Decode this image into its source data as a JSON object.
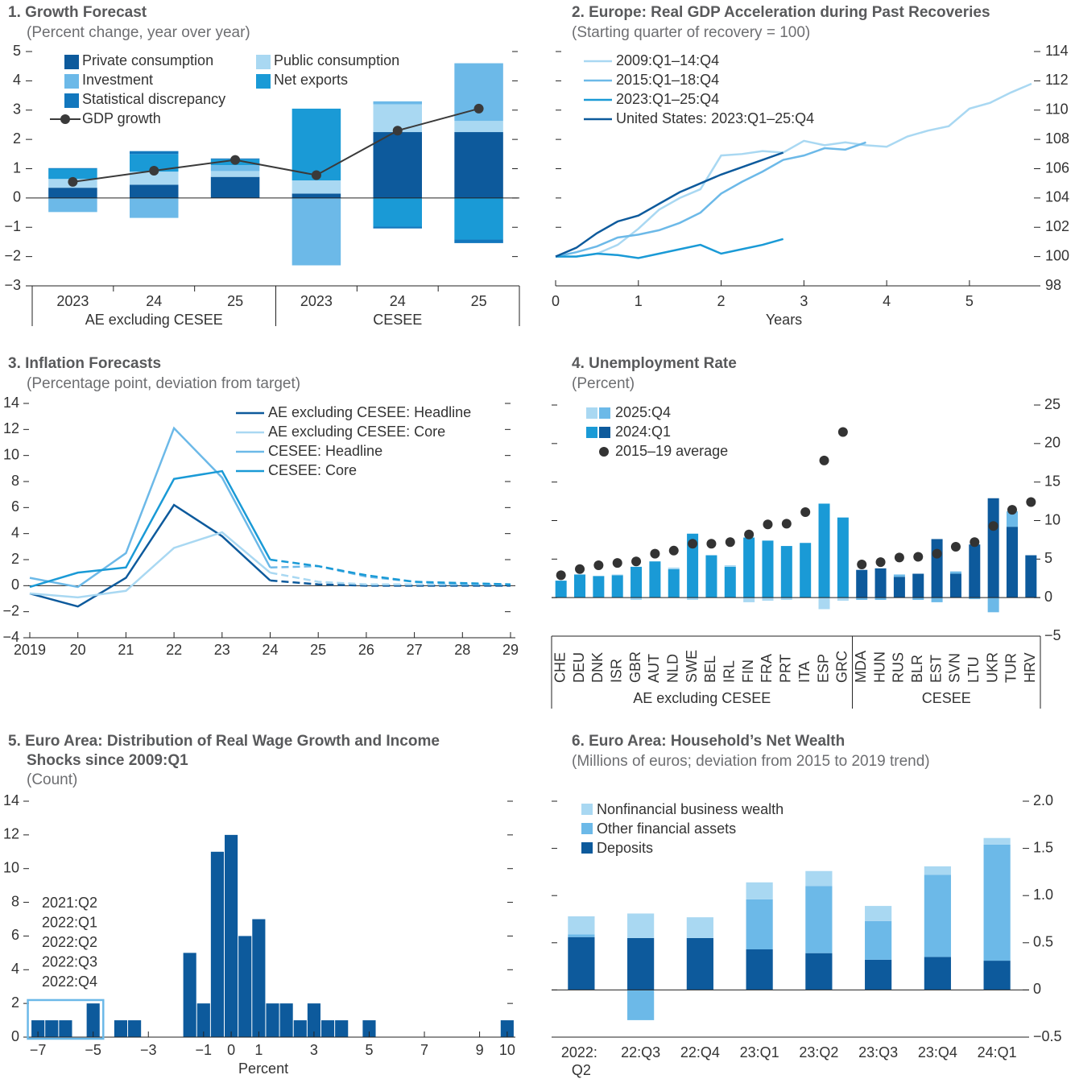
{
  "chart_data": [
    {
      "type": "bar",
      "stacked": true,
      "title": "1. Growth Forecast",
      "subtitle": "(Percent change, year over year)",
      "categories": [
        "2023",
        "24",
        "25",
        "2023",
        "24",
        "25"
      ],
      "groups": [
        {
          "label": "AE excluding CESEE",
          "size": 3
        },
        {
          "label": "CESEE",
          "size": 3
        }
      ],
      "series": [
        {
          "name": "Private consumption",
          "color": "#0d5a9c",
          "values": [
            0.35,
            0.45,
            0.72,
            0.15,
            2.25,
            2.25
          ]
        },
        {
          "name": "Public consumption",
          "color": "#a9d8f2",
          "values": [
            0.3,
            0.45,
            0.2,
            0.45,
            0.95,
            0.38
          ]
        },
        {
          "name": "Investment",
          "color": "#6cb9e8",
          "values": [
            -0.48,
            -0.68,
            0.2,
            -2.3,
            0.1,
            1.97
          ]
        },
        {
          "name": "Net exports",
          "color": "#1a9ad6",
          "values": [
            0.35,
            0.6,
            0.2,
            2.45,
            -0.98,
            -1.42
          ]
        },
        {
          "name": "Statistical discrepancy",
          "color": "#1277bd",
          "values": [
            0.02,
            0.1,
            0.03,
            0,
            -0.06,
            -0.12
          ]
        },
        {
          "name": "GDP growth",
          "type": "line",
          "color": "#3a3a3a",
          "values": [
            0.55,
            0.93,
            1.3,
            0.78,
            2.3,
            3.05
          ]
        }
      ],
      "ylim": [
        -3,
        5
      ],
      "yticks": [
        {
          "value": -3,
          "label": "−3"
        },
        {
          "value": -2,
          "label": "−2"
        },
        {
          "value": -1,
          "label": "−1"
        },
        0,
        1,
        2,
        3,
        4,
        5
      ]
    },
    {
      "type": "line",
      "title": "2. Europe: Real GDP Acceleration during Past Recoveries",
      "subtitle": "(Starting quarter of recovery = 100)",
      "x": [
        0,
        0.25,
        0.5,
        0.75,
        1,
        1.25,
        1.5,
        1.75,
        2,
        2.25,
        2.5,
        2.75,
        3,
        3.25,
        3.5,
        3.75,
        4,
        4.25,
        4.5,
        4.75,
        5,
        5.25,
        5.5,
        5.75
      ],
      "series": [
        {
          "name": "2009:Q1–14:Q4",
          "color": "#a9d8f2",
          "values": [
            100,
            100,
            100.2,
            100.8,
            101.9,
            103.2,
            104,
            104.6,
            106.9,
            107,
            107.2,
            107.1,
            107.9,
            107.6,
            107.8,
            107.6,
            107.5,
            108.2,
            108.6,
            108.9,
            110.1,
            110.5,
            111.2,
            111.8
          ]
        },
        {
          "name": "2015:Q1–18:Q4",
          "color": "#6cb9e8",
          "values": [
            100,
            100.3,
            100.7,
            101.3,
            101.5,
            101.8,
            102.3,
            103,
            104.3,
            105.1,
            105.8,
            106.6,
            106.9,
            107.4,
            107.3,
            107.8,
            null,
            null,
            null,
            null,
            null,
            null,
            null,
            null
          ]
        },
        {
          "name": "2023:Q1–25:Q4",
          "color": "#1a9ad6",
          "values": [
            100,
            100,
            100.2,
            100.1,
            99.9,
            100.2,
            100.5,
            100.8,
            100.2,
            100.5,
            100.8,
            101.2,
            null,
            null,
            null,
            null,
            null,
            null,
            null,
            null,
            null,
            null,
            null,
            null
          ]
        },
        {
          "name": "United States: 2023:Q1–25:Q4",
          "color": "#0d5a9c",
          "values": [
            100,
            100.6,
            101.6,
            102.4,
            102.8,
            103.6,
            104.4,
            105,
            105.6,
            106.1,
            106.6,
            107.1,
            null,
            null,
            null,
            null,
            null,
            null,
            null,
            null,
            null,
            null,
            null,
            null
          ]
        }
      ],
      "xlabel": "Years",
      "xlim": [
        0,
        5.75
      ],
      "xticks": [
        0,
        1,
        2,
        3,
        4,
        5
      ],
      "ylim": [
        98,
        114
      ],
      "yticks": [
        98,
        100,
        102,
        104,
        106,
        108,
        110,
        112,
        114
      ]
    },
    {
      "type": "line",
      "title": "3. Inflation Forecasts",
      "subtitle": "(Percentage point, deviation from target)",
      "categories": [
        "2019",
        "20",
        "21",
        "22",
        "23",
        "24",
        "25",
        "26",
        "27",
        "28",
        "29"
      ],
      "forecast_start": 5,
      "series": [
        {
          "name": "AE excluding CESEE: Headline",
          "color": "#0d5a9c",
          "values": [
            -0.6,
            -1.6,
            0.6,
            6.2,
            3.8,
            0.4,
            0.1,
            0,
            0,
            0,
            0
          ]
        },
        {
          "name": "AE excluding CESEE: Core",
          "color": "#a9d8f2",
          "values": [
            -0.6,
            -0.9,
            -0.4,
            2.9,
            4.1,
            1,
            0.3,
            0.1,
            0.1,
            0.1,
            0.1
          ]
        },
        {
          "name": "CESEE: Headline",
          "color": "#6cb9e8",
          "values": [
            0.6,
            -0.1,
            2.5,
            12.1,
            8.3,
            1.4,
            1.5,
            0.7,
            0.3,
            0.1,
            0.1
          ]
        },
        {
          "name": "CESEE: Core",
          "color": "#1a9ad6",
          "values": [
            -0.1,
            1,
            1.4,
            8.2,
            8.8,
            2,
            1.5,
            0.8,
            0.3,
            0.2,
            0.1
          ]
        }
      ],
      "ylim": [
        -4,
        14
      ],
      "yticks": [
        {
          "value": -4,
          "label": "−4"
        },
        {
          "value": -2,
          "label": "−2"
        },
        0,
        2,
        4,
        6,
        8,
        10,
        12,
        14
      ]
    },
    {
      "type": "bar",
      "stacked": true,
      "stack_reversed": true,
      "title": "4. Unemployment Rate",
      "subtitle": "(Percent)",
      "categories": [
        "CHE",
        "DEU",
        "DNK",
        "ISR",
        "GBR",
        "AUT",
        "NLD",
        "SWE",
        "BEL",
        "IRL",
        "FIN",
        "FRA",
        "PRT",
        "ITA",
        "ESP",
        "GRC",
        "MDA",
        "HUN",
        "RUS",
        "BLR",
        "EST",
        "SVN",
        "LTU",
        "UKR",
        "TUR",
        "HRV"
      ],
      "groups": [
        {
          "label": "AE excluding CESEE",
          "size": 16
        },
        {
          "label": "CESEE",
          "size": 10
        }
      ],
      "series": [
        {
          "name": "2025:Q4",
          "colors": [
            "#a9d8f2",
            "#6cb9e8"
          ],
          "values": [
            0,
            0,
            0,
            0.1,
            -0.3,
            0,
            0.2,
            -0.3,
            0,
            0.2,
            -0.6,
            -0.4,
            -0.3,
            0,
            -1.5,
            -0.4,
            -0.3,
            -0.3,
            0.3,
            -0.3,
            -0.6,
            0.3,
            -0.2,
            -1.9,
            2,
            0
          ]
        },
        {
          "name": "2024:Q1",
          "colors": [
            "#1a9ad6",
            "#0d5a9c"
          ],
          "values": [
            2.2,
            3,
            2.8,
            2.9,
            4,
            4.7,
            3.7,
            8.3,
            5.5,
            4,
            7.8,
            7.4,
            6.7,
            7.1,
            12.2,
            10.4,
            3.6,
            3.8,
            2.7,
            3.1,
            7.6,
            3.1,
            6.9,
            12.9,
            9.2,
            5.5
          ]
        },
        {
          "name": "2015–19 average",
          "type": "scatter",
          "color": "#333333",
          "values": [
            2.9,
            3.7,
            4.2,
            4.5,
            4.7,
            5.7,
            6.1,
            7,
            7,
            7.2,
            8.2,
            9.5,
            9.6,
            11.1,
            17.8,
            21.5,
            4.3,
            4.6,
            5.2,
            5.3,
            5.7,
            6.6,
            7.2,
            9.3,
            11.4,
            12.4
          ]
        }
      ],
      "ylim": [
        -5,
        25
      ],
      "yticks": [
        {
          "value": -5,
          "label": "−5"
        },
        0,
        5,
        10,
        15,
        20,
        25
      ]
    },
    {
      "type": "histogram",
      "title": "5. Euro Area: Distribution of Real Wage Growth and Income Shocks since 2009:Q1",
      "subtitle": "(Count)",
      "color": "#0d5a9c",
      "bins": [
        -7.25,
        -6.75,
        -6.25,
        -5.75,
        -5.25,
        -4.75,
        -4.25,
        -3.75,
        -3.25,
        -2.75,
        -2.25,
        -1.75,
        -1.25,
        -0.75,
        -0.25,
        0.25,
        0.75,
        1.25,
        1.75,
        2.25,
        2.75,
        3.25,
        3.75,
        4.25,
        4.75,
        5.25,
        5.75,
        6.25,
        6.75,
        7.25,
        7.75,
        8.25,
        8.75,
        9.25,
        9.75,
        10.25
      ],
      "counts": [
        1,
        1,
        1,
        0,
        2,
        0,
        1,
        1,
        0,
        0,
        0,
        5,
        2,
        11,
        12,
        6,
        7,
        2,
        2,
        1,
        2,
        1,
        1,
        0,
        1,
        0,
        0,
        0,
        0,
        0,
        0,
        0,
        0,
        0,
        1
      ],
      "highlight": {
        "x": [
          -7.25,
          -4.75
        ],
        "y": [
          0,
          2.2
        ],
        "color": "#6cb9e8",
        "labels": [
          "2021:Q2",
          "2022:Q1",
          "2022:Q2",
          "2022:Q3",
          "2022:Q4"
        ]
      },
      "xlabel": "Percent",
      "xlim": [
        -7.5,
        10.5
      ],
      "xticks": [
        {
          "value": -7,
          "label": "−7"
        },
        {
          "value": -5,
          "label": "−5"
        },
        {
          "value": -3,
          "label": "−3"
        },
        {
          "value": -1,
          "label": "−1"
        },
        0,
        1,
        3,
        5,
        7,
        9,
        10
      ],
      "ylim": [
        0,
        14
      ],
      "yticks": [
        0,
        2,
        4,
        6,
        8,
        10,
        12,
        14
      ]
    },
    {
      "type": "bar",
      "stacked": true,
      "stack_reversed": true,
      "title": "6. Euro Area: Household’s Net Wealth",
      "subtitle": "(Millions of euros; deviation from 2015 to 2019 trend)",
      "categories": [
        "2022: Q2",
        "22:Q3",
        "22:Q4",
        "23:Q1",
        "23:Q2",
        "23:Q3",
        "23:Q4",
        "24:Q1"
      ],
      "series": [
        {
          "name": "Nonfinancial business wealth",
          "color": "#a9d8f2",
          "values": [
            0.19,
            0.26,
            0.22,
            0.18,
            0.16,
            0.16,
            0.09,
            0.07
          ]
        },
        {
          "name": "Other financial assets",
          "color": "#6cb9e8",
          "values": [
            0.03,
            -0.32,
            0,
            0.53,
            0.71,
            0.41,
            0.87,
            1.23
          ]
        },
        {
          "name": "Deposits",
          "color": "#0d5a9c",
          "values": [
            0.56,
            0.55,
            0.55,
            0.43,
            0.39,
            0.32,
            0.35,
            0.31
          ]
        }
      ],
      "ylim": [
        -0.5,
        2
      ],
      "yticks": [
        {
          "value": -0.5,
          "label": "−0.5"
        },
        0,
        0.5,
        {
          "value": 1,
          "label": "1.0"
        },
        1.5,
        {
          "value": 2,
          "label": "2.0"
        }
      ]
    }
  ]
}
